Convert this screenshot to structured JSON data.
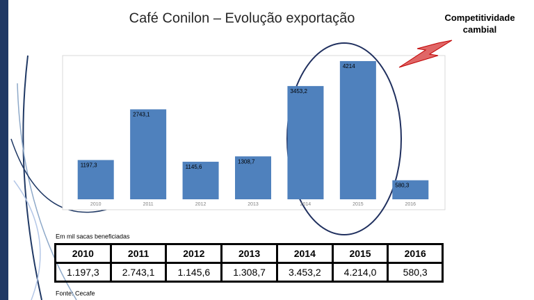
{
  "chart_data": {
    "type": "bar",
    "title": "Café Conilon – Evolução exportação",
    "categories": [
      "2010",
      "2011",
      "2012",
      "2013",
      "2014",
      "2015",
      "2016"
    ],
    "values": [
      1197.3,
      2743.1,
      1145.6,
      1308.7,
      3453.2,
      4214,
      580.3
    ],
    "value_labels": [
      "1197,3",
      "2743,1",
      "1145,6",
      "1308,7",
      "3453,2",
      "4214",
      "580,3"
    ],
    "color": "#4f81bd",
    "annotation": "Competitividade cambial",
    "unit_note": "Em mil sacas beneficiadas",
    "source": "Fonte: Cecafe"
  },
  "table": {
    "row": [
      "1.197,3",
      "2.743,1",
      "1.145,6",
      "1.308,7",
      "3.453,2",
      "4.214,0",
      "580,3"
    ]
  }
}
